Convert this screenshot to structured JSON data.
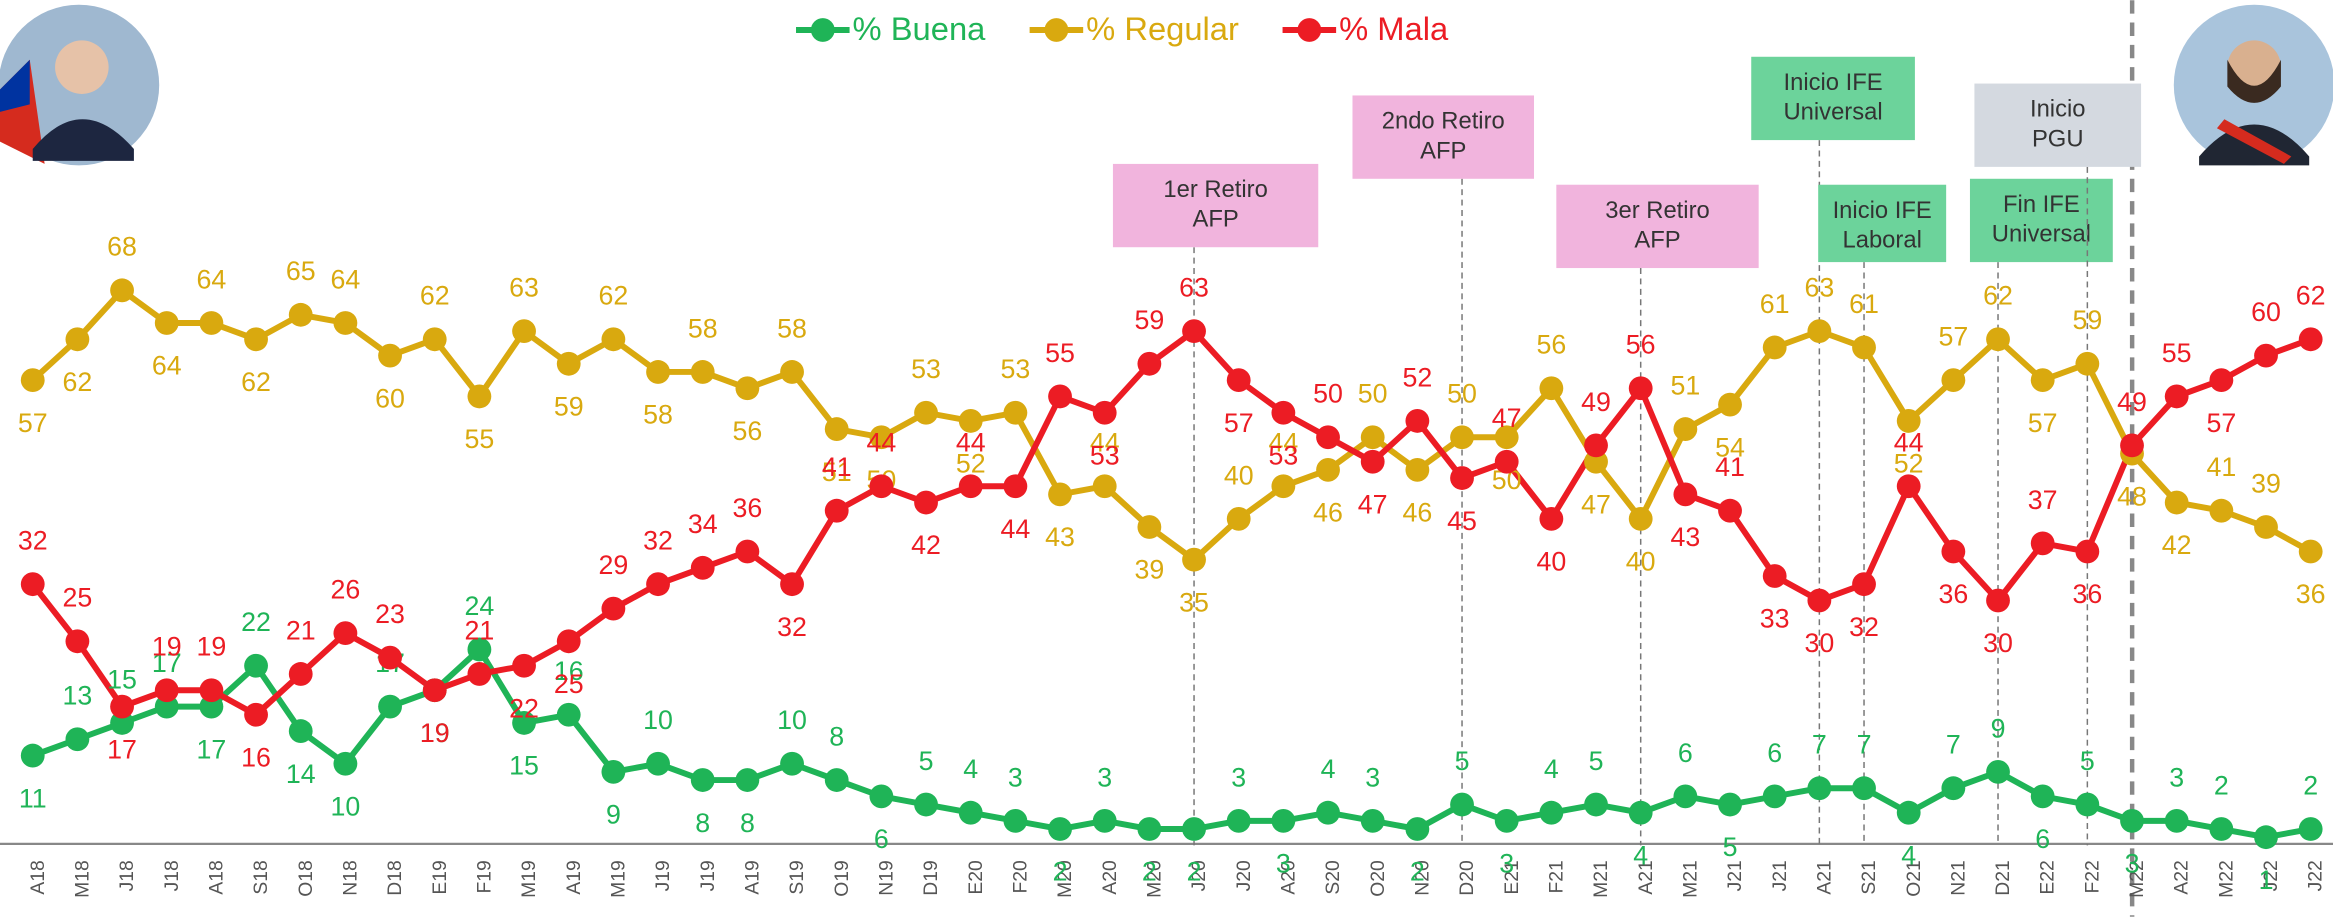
{
  "chart_data": {
    "type": "line",
    "categories": [
      "A18",
      "M18",
      "J18",
      "J18",
      "A18",
      "S18",
      "O18",
      "N18",
      "D18",
      "E19",
      "F19",
      "M19",
      "A19",
      "M19",
      "J19",
      "J19",
      "A19",
      "S19",
      "O19",
      "N19",
      "D19",
      "E20",
      "F20",
      "M20",
      "A20",
      "M20",
      "J20",
      "J20",
      "A20",
      "S20",
      "O20",
      "N20",
      "D20",
      "E21",
      "F21",
      "M21",
      "A21",
      "M21",
      "J21",
      "J21",
      "A21",
      "S21",
      "O21",
      "N21",
      "D21",
      "E22",
      "F22",
      "M22",
      "A22",
      "M22",
      "J22",
      "J22"
    ],
    "series": [
      {
        "name": "% Buena",
        "color": "#1fb457",
        "values": [
          11,
          13,
          15,
          17,
          17,
          22,
          14,
          10,
          17,
          19,
          24,
          15,
          16,
          9,
          10,
          8,
          8,
          10,
          8,
          6,
          5,
          4,
          3,
          2,
          3,
          2,
          2,
          3,
          3,
          4,
          3,
          2,
          5,
          3,
          4,
          5,
          4,
          6,
          5,
          6,
          7,
          7,
          4,
          7,
          9,
          6,
          5,
          3,
          3,
          2,
          1,
          2
        ]
      },
      {
        "name": "% Regular",
        "color": "#d9a90f",
        "values": [
          57,
          62,
          68,
          64,
          64,
          62,
          65,
          64,
          60,
          62,
          55,
          63,
          59,
          62,
          58,
          58,
          56,
          58,
          51,
          50,
          53,
          52,
          53,
          43,
          44,
          39,
          35,
          40,
          44,
          46,
          50,
          46,
          50,
          50,
          56,
          47,
          40,
          51,
          54,
          61,
          63,
          61,
          52,
          57,
          62,
          57,
          59,
          48,
          42,
          41,
          39,
          36
        ]
      },
      {
        "name": "% Mala",
        "color": "#ec1c24",
        "values": [
          32,
          25,
          17,
          19,
          19,
          16,
          21,
          26,
          23,
          19,
          21,
          22,
          25,
          29,
          32,
          34,
          36,
          32,
          41,
          44,
          42,
          44,
          44,
          55,
          53,
          59,
          63,
          57,
          53,
          50,
          47,
          52,
          45,
          47,
          40,
          49,
          56,
          43,
          41,
          33,
          30,
          32,
          44,
          36,
          30,
          37,
          36,
          49,
          55,
          57,
          60,
          62
        ]
      }
    ],
    "ylim": [
      0,
      70
    ],
    "annotations": [
      {
        "lines": [
          "1er Retiro",
          "AFP"
        ]
      },
      {
        "lines": [
          "2ndo Retiro",
          "AFP"
        ]
      },
      {
        "lines": [
          "3er Retiro",
          "AFP"
        ]
      },
      {
        "lines": [
          "Inicio IFE",
          "Universal"
        ]
      },
      {
        "lines": [
          "Inicio IFE",
          "Laboral"
        ]
      },
      {
        "lines": [
          "Fin IFE",
          "Universal"
        ]
      },
      {
        "lines": [
          "Inicio",
          "PGU"
        ]
      }
    ]
  }
}
